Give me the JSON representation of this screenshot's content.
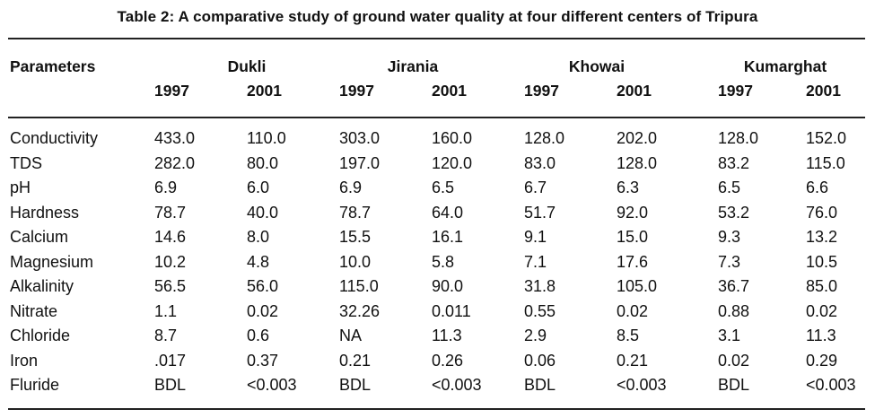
{
  "title": "Table 2: A comparative study of ground water quality at four different centers of Tripura",
  "header": {
    "parameters_label": "Parameters",
    "centers": [
      "Dukli",
      "Jirania",
      "Khowai",
      "Kumarghat"
    ],
    "years": [
      "1997",
      "2001",
      "1997",
      "2001",
      "1997",
      "2001",
      "1997",
      "2001"
    ]
  },
  "rows": [
    {
      "param": "Conductivity",
      "values": [
        "433.0",
        "110.0",
        "303.0",
        "160.0",
        "128.0",
        "202.0",
        "128.0",
        "152.0"
      ]
    },
    {
      "param": "TDS",
      "values": [
        "282.0",
        "80.0",
        "197.0",
        "120.0",
        "83.0",
        "128.0",
        "83.2",
        "115.0"
      ]
    },
    {
      "param": "pH",
      "values": [
        "6.9",
        "6.0",
        "6.9",
        "6.5",
        "6.7",
        "6.3",
        "6.5",
        "6.6"
      ]
    },
    {
      "param": "Hardness",
      "values": [
        "78.7",
        "40.0",
        "78.7",
        "64.0",
        "51.7",
        "92.0",
        "53.2",
        "76.0"
      ]
    },
    {
      "param": "Calcium",
      "values": [
        "14.6",
        "8.0",
        "15.5",
        "16.1",
        "9.1",
        "15.0",
        "9.3",
        "13.2"
      ]
    },
    {
      "param": "Magnesium",
      "values": [
        "10.2",
        "4.8",
        "10.0",
        "5.8",
        "7.1",
        "17.6",
        "7.3",
        "10.5"
      ]
    },
    {
      "param": "Alkalinity",
      "values": [
        "56.5",
        "56.0",
        "115.0",
        "90.0",
        "31.8",
        "105.0",
        "36.7",
        "85.0"
      ]
    },
    {
      "param": "Nitrate",
      "values": [
        "1.1",
        "0.02",
        "32.26",
        "0.011",
        "0.55",
        "0.02",
        "0.88",
        "0.02"
      ]
    },
    {
      "param": "Chloride",
      "values": [
        "8.7",
        "0.6",
        "NA",
        "11.3",
        "2.9",
        "8.5",
        "3.1",
        "11.3"
      ]
    },
    {
      "param": "Iron",
      "values": [
        ".017",
        "0.37",
        "0.21",
        "0.26",
        "0.06",
        "0.21",
        "0.02",
        "0.29"
      ]
    },
    {
      "param": "Fluride",
      "values": [
        "BDL",
        "<0.003",
        "BDL",
        "<0.003",
        "BDL",
        "<0.003",
        "BDL",
        "<0.003"
      ]
    }
  ]
}
